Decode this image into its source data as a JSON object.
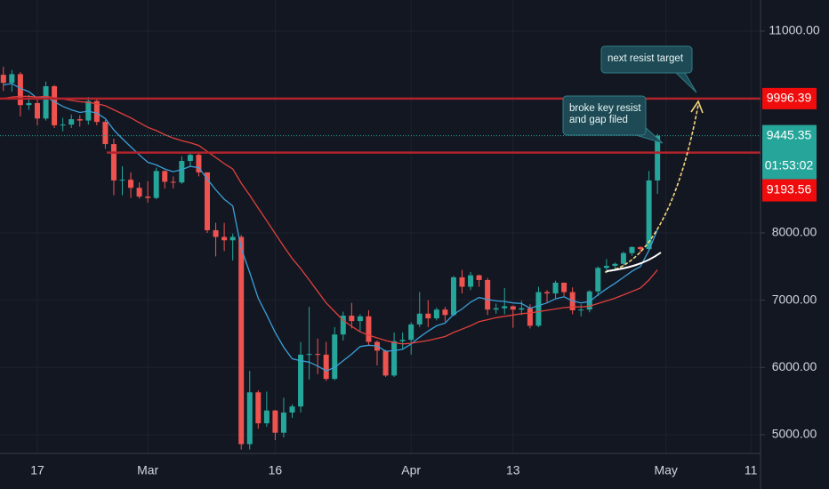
{
  "chart_data": {
    "type": "candlestick",
    "categories": [
      null,
      null,
      null,
      null,
      "17",
      null,
      null,
      null,
      null,
      null,
      null,
      null,
      null,
      null,
      null,
      null,
      null,
      "Mar",
      null,
      null,
      null,
      null,
      null,
      null,
      null,
      null,
      null,
      null,
      null,
      null,
      null,
      null,
      "16",
      null,
      null,
      null,
      null,
      null,
      null,
      null,
      null,
      null,
      null,
      null,
      null,
      null,
      null,
      null,
      "Apr",
      null,
      null,
      null,
      null,
      null,
      null,
      null,
      null,
      null,
      null,
      null,
      "13",
      null,
      null,
      null,
      null,
      null,
      null,
      null,
      null,
      null,
      null,
      null,
      null,
      null,
      null,
      null,
      null,
      null,
      "May",
      null,
      null,
      null,
      null,
      null,
      null,
      null,
      null,
      null,
      "11",
      null
    ],
    "open": [
      10350,
      10230,
      10360,
      9900,
      9930,
      9700,
      10180,
      9600,
      9610,
      9690,
      9670,
      9960,
      9650,
      9320,
      8780,
      8790,
      8670,
      8540,
      8520,
      8920,
      8760,
      8750,
      9070,
      9160,
      8900,
      8040,
      7940,
      7890,
      7940,
      4860,
      5630,
      5170,
      5360,
      5030,
      5330,
      5420,
      6190,
      6200,
      6190,
      5830,
      6490,
      6770,
      6690,
      6760,
      6380,
      6250,
      5880,
      6390,
      6410,
      6640,
      6800,
      6730,
      6860,
      6780,
      7340,
      7200,
      7370,
      7300,
      6860,
      6880,
      6910,
      6860,
      6880,
      6620,
      7120,
      7100,
      7260,
      7120,
      6850,
      6860,
      7130,
      7480,
      7510,
      7540,
      7700,
      7790,
      7760,
      8780,
      null,
      null,
      null,
      null,
      null,
      null,
      null,
      null,
      null,
      null,
      null,
      null
    ],
    "high": [
      10470,
      10420,
      10390,
      10050,
      9990,
      10250,
      10200,
      9710,
      9760,
      9750,
      10020,
      9990,
      9680,
      9400,
      8990,
      8900,
      8750,
      8770,
      8970,
      8930,
      8840,
      9140,
      9200,
      9200,
      8900,
      8150,
      8150,
      7990,
      7970,
      5950,
      5660,
      5640,
      5370,
      5550,
      5450,
      6380,
      6900,
      6430,
      6380,
      6600,
      6830,
      6960,
      6790,
      6850,
      6400,
      6260,
      6520,
      6520,
      6670,
      7120,
      7000,
      6890,
      6900,
      7360,
      7450,
      7420,
      7380,
      7330,
      6950,
      7180,
      6920,
      6990,
      6940,
      7200,
      7150,
      7290,
      7260,
      7190,
      6940,
      7150,
      7500,
      7610,
      7560,
      7720,
      7800,
      7800,
      8920,
      9470,
      null,
      null,
      null,
      null,
      null,
      null,
      null,
      null,
      null,
      null,
      null,
      null
    ],
    "low": [
      10110,
      10100,
      9730,
      9830,
      9600,
      9670,
      9560,
      9510,
      9560,
      9580,
      9610,
      9600,
      9250,
      8560,
      8560,
      8520,
      8510,
      8450,
      8500,
      8660,
      8660,
      8730,
      8990,
      8840,
      8000,
      7650,
      7730,
      7590,
      4780,
      4780,
      5090,
      5120,
      4920,
      4960,
      5250,
      5330,
      5820,
      5900,
      5800,
      5810,
      6400,
      6580,
      6540,
      6330,
      6030,
      5860,
      5860,
      6270,
      6190,
      6600,
      6600,
      6700,
      6680,
      6760,
      7100,
      7150,
      7200,
      6780,
      6800,
      6790,
      6590,
      6780,
      6580,
      6600,
      6960,
      7030,
      7060,
      6790,
      6760,
      6820,
      7060,
      7400,
      7460,
      7510,
      7660,
      7700,
      7730,
      8580,
      null,
      null,
      null,
      null,
      null,
      null,
      null,
      null,
      null,
      null,
      null,
      null
    ],
    "close": [
      10230,
      10360,
      9900,
      9930,
      9700,
      10180,
      9600,
      9610,
      9690,
      9670,
      9960,
      9650,
      9320,
      8780,
      8790,
      8670,
      8540,
      8520,
      8920,
      8760,
      8750,
      9070,
      9160,
      8900,
      8040,
      7940,
      7890,
      7940,
      4860,
      5630,
      5170,
      5360,
      5030,
      5330,
      5420,
      6190,
      6200,
      6190,
      5830,
      6490,
      6770,
      6690,
      6760,
      6380,
      6250,
      5880,
      6390,
      6410,
      6640,
      6800,
      6730,
      6860,
      6780,
      7340,
      7200,
      7370,
      7300,
      6860,
      6880,
      6910,
      6860,
      6880,
      6620,
      7120,
      7100,
      7260,
      7120,
      6850,
      6860,
      7130,
      7480,
      7510,
      7540,
      7700,
      7790,
      7760,
      8780,
      9445.35,
      null,
      null,
      null,
      null,
      null,
      null,
      null,
      null,
      null,
      null,
      null,
      null
    ],
    "up_color": "#26a69a",
    "down_color": "#ef5350",
    "series": [
      {
        "color": "#3a9fd6",
        "values": [
          10200,
          10220,
          10150,
          10100,
          10000,
          10020,
          9950,
          9880,
          9830,
          9790,
          9810,
          9780,
          9700,
          9530,
          9400,
          9280,
          9160,
          9050,
          9010,
          8950,
          8910,
          8940,
          8990,
          8970,
          8800,
          8640,
          8500,
          8400,
          7770,
          7410,
          7030,
          6780,
          6520,
          6300,
          6130,
          6100,
          6080,
          6020,
          5950,
          6000,
          6100,
          6200,
          6310,
          6330,
          6320,
          6240,
          6250,
          6270,
          6350,
          6450,
          6540,
          6620,
          6660,
          6790,
          6870,
          6970,
          7040,
          7010,
          6990,
          6980,
          6960,
          6950,
          6880,
          6920,
          6960,
          7020,
          7050,
          6990,
          6960,
          6980,
          7080,
          7170,
          7250,
          7340,
          7430,
          7500,
          7740,
          8050,
          null,
          null,
          null,
          null,
          null,
          null,
          null,
          null,
          null,
          null,
          null,
          null
        ]
      },
      {
        "color": "#e0403c",
        "values": [
          10000,
          10020,
          10030,
          10030,
          10020,
          10030,
          10010,
          9990,
          9970,
          9950,
          9940,
          9920,
          9890,
          9830,
          9770,
          9710,
          9640,
          9570,
          9520,
          9460,
          9410,
          9370,
          9340,
          9300,
          9210,
          9120,
          9030,
          8950,
          8740,
          8560,
          8370,
          8180,
          7990,
          7800,
          7620,
          7470,
          7300,
          7130,
          6960,
          6830,
          6700,
          6610,
          6530,
          6480,
          6440,
          6400,
          6370,
          6350,
          6360,
          6380,
          6400,
          6430,
          6460,
          6520,
          6570,
          6620,
          6680,
          6710,
          6740,
          6760,
          6780,
          6800,
          6810,
          6830,
          6850,
          6870,
          6890,
          6900,
          6900,
          6910,
          6950,
          6990,
          7030,
          7080,
          7130,
          7180,
          7300,
          7450,
          null,
          null,
          null,
          null,
          null,
          null,
          null,
          null,
          null,
          null,
          null,
          null
        ]
      }
    ],
    "ylim": [
      4722,
      11462
    ],
    "yticks": [
      {
        "value": 5000,
        "label": "5000.00"
      },
      {
        "value": 6000,
        "label": "6000.00"
      },
      {
        "value": 7000,
        "label": "7000.00"
      },
      {
        "value": 8000,
        "label": "8000.00"
      },
      {
        "value": 11000,
        "label": "11000.00"
      }
    ],
    "hlines": [
      {
        "value": 9996.39,
        "color": "#b2242b"
      },
      {
        "value": 9193.56,
        "color": "#b2242b"
      }
    ],
    "last_price": {
      "value": 9445.35,
      "countdown": "01:53:02",
      "color": "#26a69a"
    },
    "annotations": [
      [
        "next resist target"
      ],
      [
        "broke key resist",
        "and gap filed"
      ]
    ]
  }
}
